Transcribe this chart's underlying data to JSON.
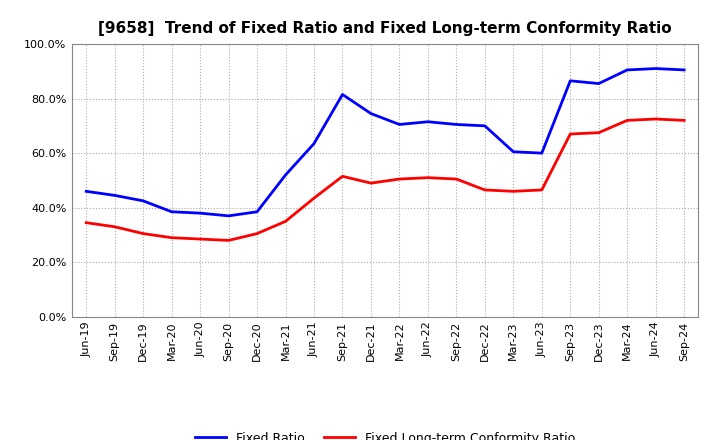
{
  "title": "[9658]  Trend of Fixed Ratio and Fixed Long-term Conformity Ratio",
  "x_labels": [
    "Jun-19",
    "Sep-19",
    "Dec-19",
    "Mar-20",
    "Jun-20",
    "Sep-20",
    "Dec-20",
    "Mar-21",
    "Jun-21",
    "Sep-21",
    "Dec-21",
    "Mar-22",
    "Jun-22",
    "Sep-22",
    "Dec-22",
    "Mar-23",
    "Jun-23",
    "Sep-23",
    "Dec-23",
    "Mar-24",
    "Jun-24",
    "Sep-24"
  ],
  "fixed_ratio": [
    46.0,
    44.5,
    42.5,
    38.5,
    38.0,
    37.0,
    38.5,
    52.0,
    63.5,
    81.5,
    74.5,
    70.5,
    71.5,
    70.5,
    70.0,
    60.5,
    60.0,
    86.5,
    85.5,
    90.5,
    91.0,
    90.5
  ],
  "fixed_lt_ratio": [
    34.5,
    33.0,
    30.5,
    29.0,
    28.5,
    28.0,
    30.5,
    35.0,
    43.5,
    51.5,
    49.0,
    50.5,
    51.0,
    50.5,
    46.5,
    46.0,
    46.5,
    67.0,
    67.5,
    72.0,
    72.5,
    72.0
  ],
  "fixed_ratio_color": "#0000FF",
  "fixed_lt_ratio_color": "#FF0000",
  "ylim": [
    0,
    100
  ],
  "yticks": [
    0,
    20,
    40,
    60,
    80,
    100
  ],
  "background_color": "#FFFFFF",
  "plot_bg_color": "#FFFFFF",
  "grid_color": "#AAAAAA",
  "legend_fixed": "Fixed Ratio",
  "legend_fixed_lt": "Fixed Long-term Conformity Ratio",
  "title_fontsize": 11,
  "tick_fontsize": 8,
  "legend_fontsize": 9,
  "linewidth": 2.0
}
